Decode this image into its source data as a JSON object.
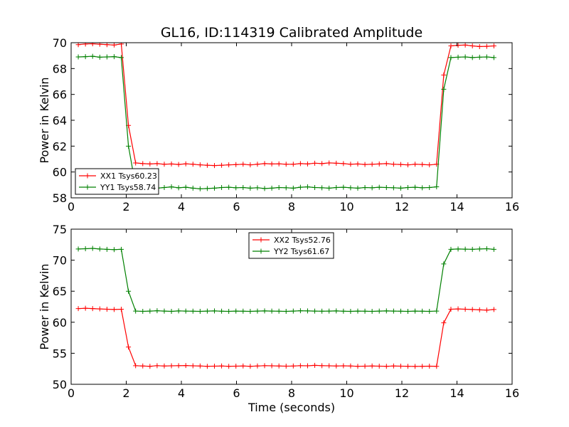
{
  "title": "GL16, ID:114319 Calibrated Amplitude",
  "chart_data": [
    {
      "type": "line",
      "title": "GL16, ID:114319 Calibrated Amplitude",
      "xlabel": "",
      "ylabel": "Power in Kelvin",
      "xlim": [
        0,
        16
      ],
      "ylim": [
        58,
        70
      ],
      "xticks": [
        0,
        2,
        4,
        6,
        8,
        10,
        12,
        14,
        16
      ],
      "yticks": [
        58,
        60,
        62,
        64,
        66,
        68,
        70
      ],
      "grid": false,
      "legend_position": "lower-left",
      "x": [
        0.26,
        0.52,
        0.78,
        1.04,
        1.3,
        1.56,
        1.82,
        2.08,
        2.34,
        2.6,
        2.86,
        3.12,
        3.38,
        3.64,
        3.9,
        4.16,
        4.42,
        4.68,
        4.94,
        5.2,
        5.46,
        5.72,
        5.98,
        6.24,
        6.5,
        6.76,
        7.02,
        7.28,
        7.54,
        7.8,
        8.06,
        8.32,
        8.58,
        8.84,
        9.1,
        9.36,
        9.62,
        9.88,
        10.14,
        10.4,
        10.66,
        10.92,
        11.18,
        11.44,
        11.7,
        11.96,
        12.22,
        12.48,
        12.74,
        13.0,
        13.26,
        13.52,
        13.78,
        14.04,
        14.3,
        14.56,
        14.82,
        15.08,
        15.34
      ],
      "series": [
        {
          "name": "XX1 Tsys60.23",
          "color": "#ff0000",
          "values": [
            69.85,
            69.9,
            69.92,
            69.88,
            69.85,
            69.82,
            69.9,
            63.6,
            60.7,
            60.65,
            60.62,
            60.65,
            60.6,
            60.62,
            60.58,
            60.63,
            60.6,
            60.55,
            60.52,
            60.5,
            60.52,
            60.55,
            60.57,
            60.6,
            60.55,
            60.6,
            60.65,
            60.62,
            60.63,
            60.6,
            60.6,
            60.65,
            60.62,
            60.68,
            60.65,
            60.7,
            60.68,
            60.65,
            60.6,
            60.62,
            60.58,
            60.6,
            60.62,
            60.65,
            60.6,
            60.58,
            60.55,
            60.6,
            60.58,
            60.55,
            60.6,
            67.5,
            69.75,
            69.8,
            69.82,
            69.75,
            69.7,
            69.72,
            69.75
          ]
        },
        {
          "name": "YY1 Tsys58.74",
          "color": "#008000",
          "values": [
            68.9,
            68.92,
            68.95,
            68.88,
            68.9,
            68.92,
            68.85,
            62.0,
            58.9,
            58.85,
            58.8,
            58.75,
            58.8,
            58.85,
            58.78,
            58.82,
            58.75,
            58.7,
            58.72,
            58.75,
            58.8,
            58.82,
            58.78,
            58.8,
            58.75,
            58.78,
            58.72,
            58.75,
            58.8,
            58.78,
            58.75,
            58.82,
            58.85,
            58.8,
            58.78,
            58.75,
            58.8,
            58.82,
            58.78,
            58.75,
            58.8,
            58.78,
            58.82,
            58.8,
            58.78,
            58.75,
            58.8,
            58.82,
            58.78,
            58.8,
            58.85,
            66.4,
            68.85,
            68.88,
            68.9,
            68.85,
            68.88,
            68.9,
            68.85
          ]
        }
      ]
    },
    {
      "type": "line",
      "title": "",
      "xlabel": "Time (seconds)",
      "ylabel": "Power in Kelvin",
      "xlim": [
        0,
        16
      ],
      "ylim": [
        50,
        75
      ],
      "xticks": [
        0,
        2,
        4,
        6,
        8,
        10,
        12,
        14,
        16
      ],
      "yticks": [
        50,
        55,
        60,
        65,
        70,
        75
      ],
      "grid": false,
      "legend_position": "upper-center",
      "x": [
        0.26,
        0.52,
        0.78,
        1.04,
        1.3,
        1.56,
        1.82,
        2.08,
        2.34,
        2.6,
        2.86,
        3.12,
        3.38,
        3.64,
        3.9,
        4.16,
        4.42,
        4.68,
        4.94,
        5.2,
        5.46,
        5.72,
        5.98,
        6.24,
        6.5,
        6.76,
        7.02,
        7.28,
        7.54,
        7.8,
        8.06,
        8.32,
        8.58,
        8.84,
        9.1,
        9.36,
        9.62,
        9.88,
        10.14,
        10.4,
        10.66,
        10.92,
        11.18,
        11.44,
        11.7,
        11.96,
        12.22,
        12.48,
        12.74,
        13.0,
        13.26,
        13.52,
        13.78,
        14.04,
        14.3,
        14.56,
        14.82,
        15.08,
        15.34
      ],
      "series": [
        {
          "name": "XX2 Tsys52.76",
          "color": "#ff0000",
          "values": [
            62.2,
            62.25,
            62.2,
            62.15,
            62.1,
            62.05,
            62.1,
            56.0,
            53.0,
            52.95,
            52.9,
            53.0,
            52.95,
            52.98,
            53.0,
            53.02,
            52.98,
            52.95,
            52.9,
            52.92,
            52.95,
            52.9,
            52.92,
            52.95,
            52.9,
            52.95,
            53.0,
            52.98,
            52.95,
            52.92,
            52.95,
            53.0,
            52.98,
            53.05,
            53.0,
            52.98,
            52.95,
            52.98,
            52.95,
            52.9,
            52.92,
            52.95,
            52.92,
            52.9,
            52.95,
            52.92,
            52.9,
            52.88,
            52.9,
            52.92,
            52.9,
            59.9,
            62.1,
            62.15,
            62.1,
            62.05,
            62.0,
            61.95,
            62.05
          ]
        },
        {
          "name": "YY2 Tsys61.67",
          "color": "#008000",
          "values": [
            71.8,
            71.85,
            71.9,
            71.8,
            71.75,
            71.7,
            71.75,
            65.0,
            61.8,
            61.75,
            61.8,
            61.85,
            61.8,
            61.75,
            61.82,
            61.8,
            61.78,
            61.75,
            61.8,
            61.82,
            61.78,
            61.75,
            61.8,
            61.78,
            61.75,
            61.8,
            61.82,
            61.8,
            61.78,
            61.75,
            61.8,
            61.85,
            61.82,
            61.8,
            61.78,
            61.8,
            61.82,
            61.78,
            61.75,
            61.8,
            61.78,
            61.75,
            61.8,
            61.82,
            61.8,
            61.78,
            61.75,
            61.8,
            61.78,
            61.75,
            61.8,
            69.4,
            71.75,
            71.8,
            71.78,
            71.75,
            71.8,
            71.85,
            71.75
          ]
        }
      ]
    }
  ]
}
